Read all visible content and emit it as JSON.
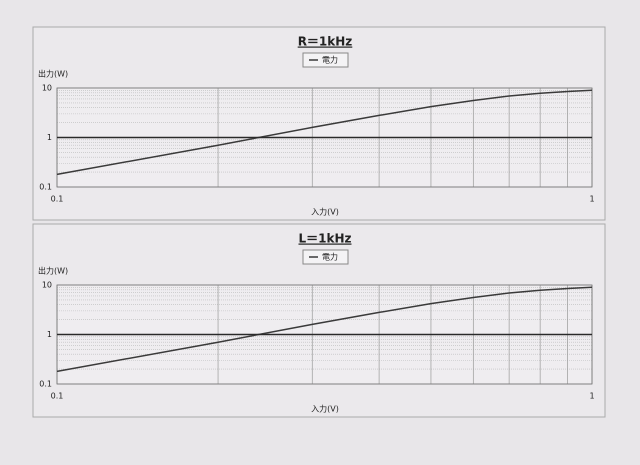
{
  "chart_data": [
    {
      "type": "line",
      "title": "R＝1kHz",
      "x_label": "入力(V)",
      "y_label": "出力(W)",
      "x": [
        0.1,
        0.2,
        0.3,
        0.4,
        0.5,
        0.6,
        0.7,
        0.8,
        0.9,
        1
      ],
      "series": [
        {
          "name": "電力",
          "color": "#3a3a3a",
          "values": [
            0.18,
            0.7,
            1.6,
            2.8,
            4.2,
            5.6,
            6.9,
            7.8,
            8.5,
            9
          ]
        },
        {
          "color": "#2a2a2a",
          "values": [
            1,
            1,
            1,
            1,
            1,
            1,
            1,
            1,
            1,
            1
          ]
        }
      ],
      "xlim": [
        0.1,
        1
      ],
      "ylim": [
        0.1,
        10
      ],
      "xticks": [
        0.1,
        1
      ],
      "yticks": [
        0.1,
        1,
        10
      ],
      "log_x": true,
      "log_y": true,
      "grid": true,
      "minor_grid": true,
      "legend": "top"
    },
    {
      "type": "line",
      "title": "L＝1kHz",
      "x_label": "入力(V)",
      "y_label": "出力(W)",
      "x": [
        0.1,
        0.2,
        0.3,
        0.4,
        0.5,
        0.6,
        0.7,
        0.8,
        0.9,
        1
      ],
      "series": [
        {
          "name": "電力",
          "color": "#3a3a3a",
          "values": [
            0.18,
            0.7,
            1.6,
            2.8,
            4.2,
            5.6,
            6.9,
            7.8,
            8.5,
            9
          ]
        },
        {
          "color": "#2a2a2a",
          "values": [
            1,
            1,
            1,
            1,
            1,
            1,
            1,
            1,
            1,
            1
          ]
        }
      ],
      "xlim": [
        0.1,
        1
      ],
      "ylim": [
        0.1,
        10
      ],
      "xticks": [
        0.1,
        1
      ],
      "yticks": [
        0.1,
        1,
        10
      ],
      "log_x": true,
      "log_y": true,
      "grid": true,
      "minor_grid": true,
      "legend": "top"
    }
  ]
}
